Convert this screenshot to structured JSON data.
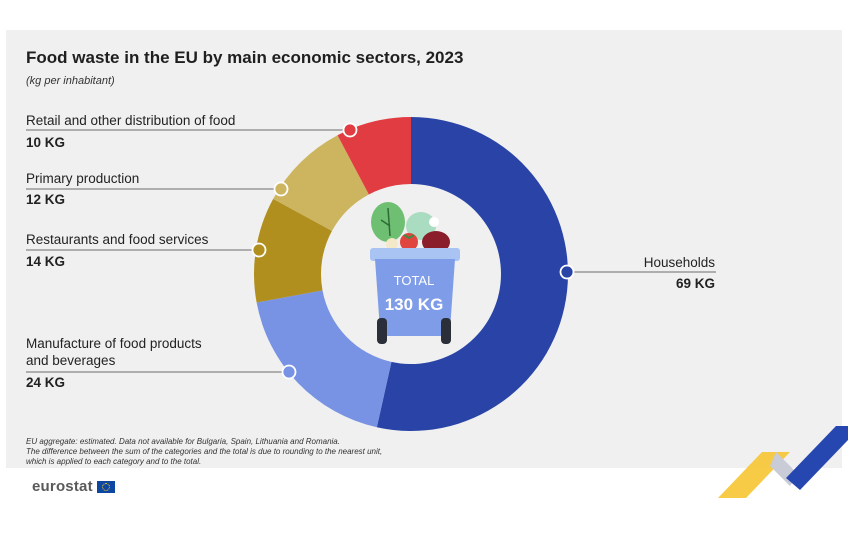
{
  "chart_data": {
    "type": "pie",
    "style": "donut",
    "title": "Food waste in the EU by main economic sectors, 2023",
    "subtitle": "(kg per inhabitant)",
    "unit": "KG",
    "total": {
      "label": "TOTAL",
      "value": 130,
      "text": "130 KG"
    },
    "slices": [
      {
        "label": "Households",
        "value": 69,
        "value_text": "69 KG",
        "color": "#2944a6"
      },
      {
        "label": "Manufacture of food products and beverages",
        "label_lines": [
          "Manufacture of food products",
          "and beverages"
        ],
        "value": 24,
        "value_text": "24 KG",
        "color": "#7892e4"
      },
      {
        "label": "Restaurants and food services",
        "value": 14,
        "value_text": "14 KG",
        "color": "#b08f1f"
      },
      {
        "label": "Primary production",
        "value": 12,
        "value_text": "12 KG",
        "color": "#cdb560"
      },
      {
        "label": "Retail and other distribution of food",
        "value": 10,
        "value_text": "10 KG",
        "color": "#e03c41"
      }
    ]
  },
  "footnote": [
    "EU aggregate: estimated. Data not available for Bulgaria, Spain, Lithuania and Romania.",
    "The difference between the sum of the categories and the total is due to rounding to the nearest unit,",
    "which is applied to each category and to the total."
  ],
  "brand": {
    "name": "eurostat"
  }
}
